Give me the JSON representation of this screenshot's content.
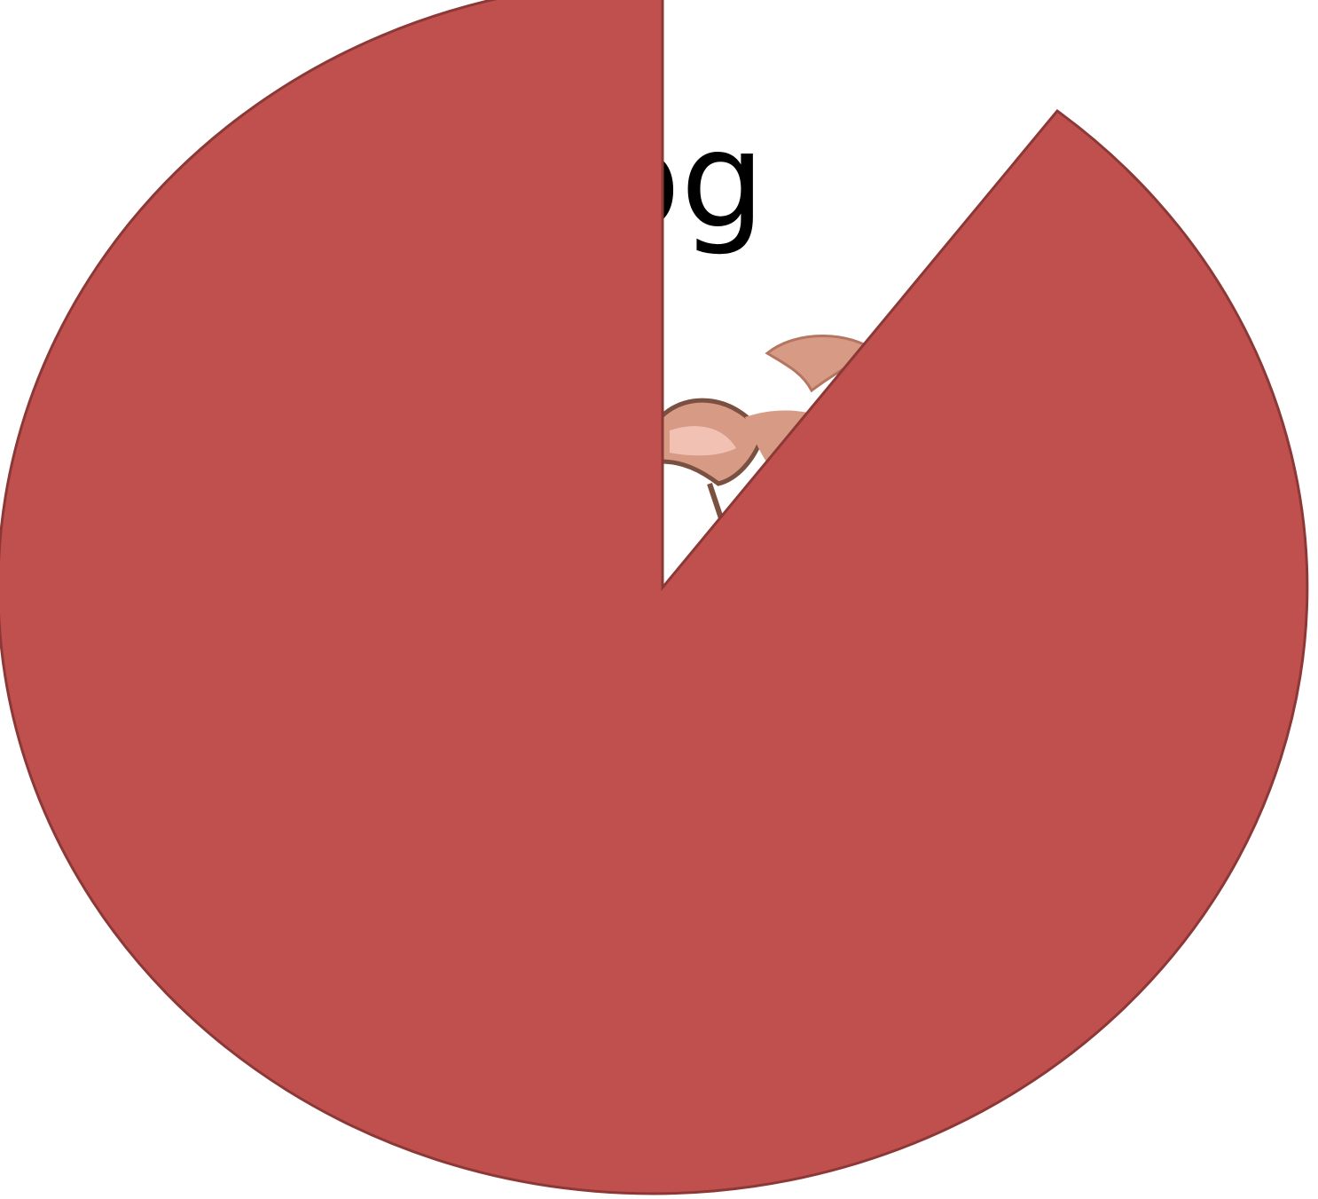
{
  "slide": {
    "title": "Dog"
  }
}
